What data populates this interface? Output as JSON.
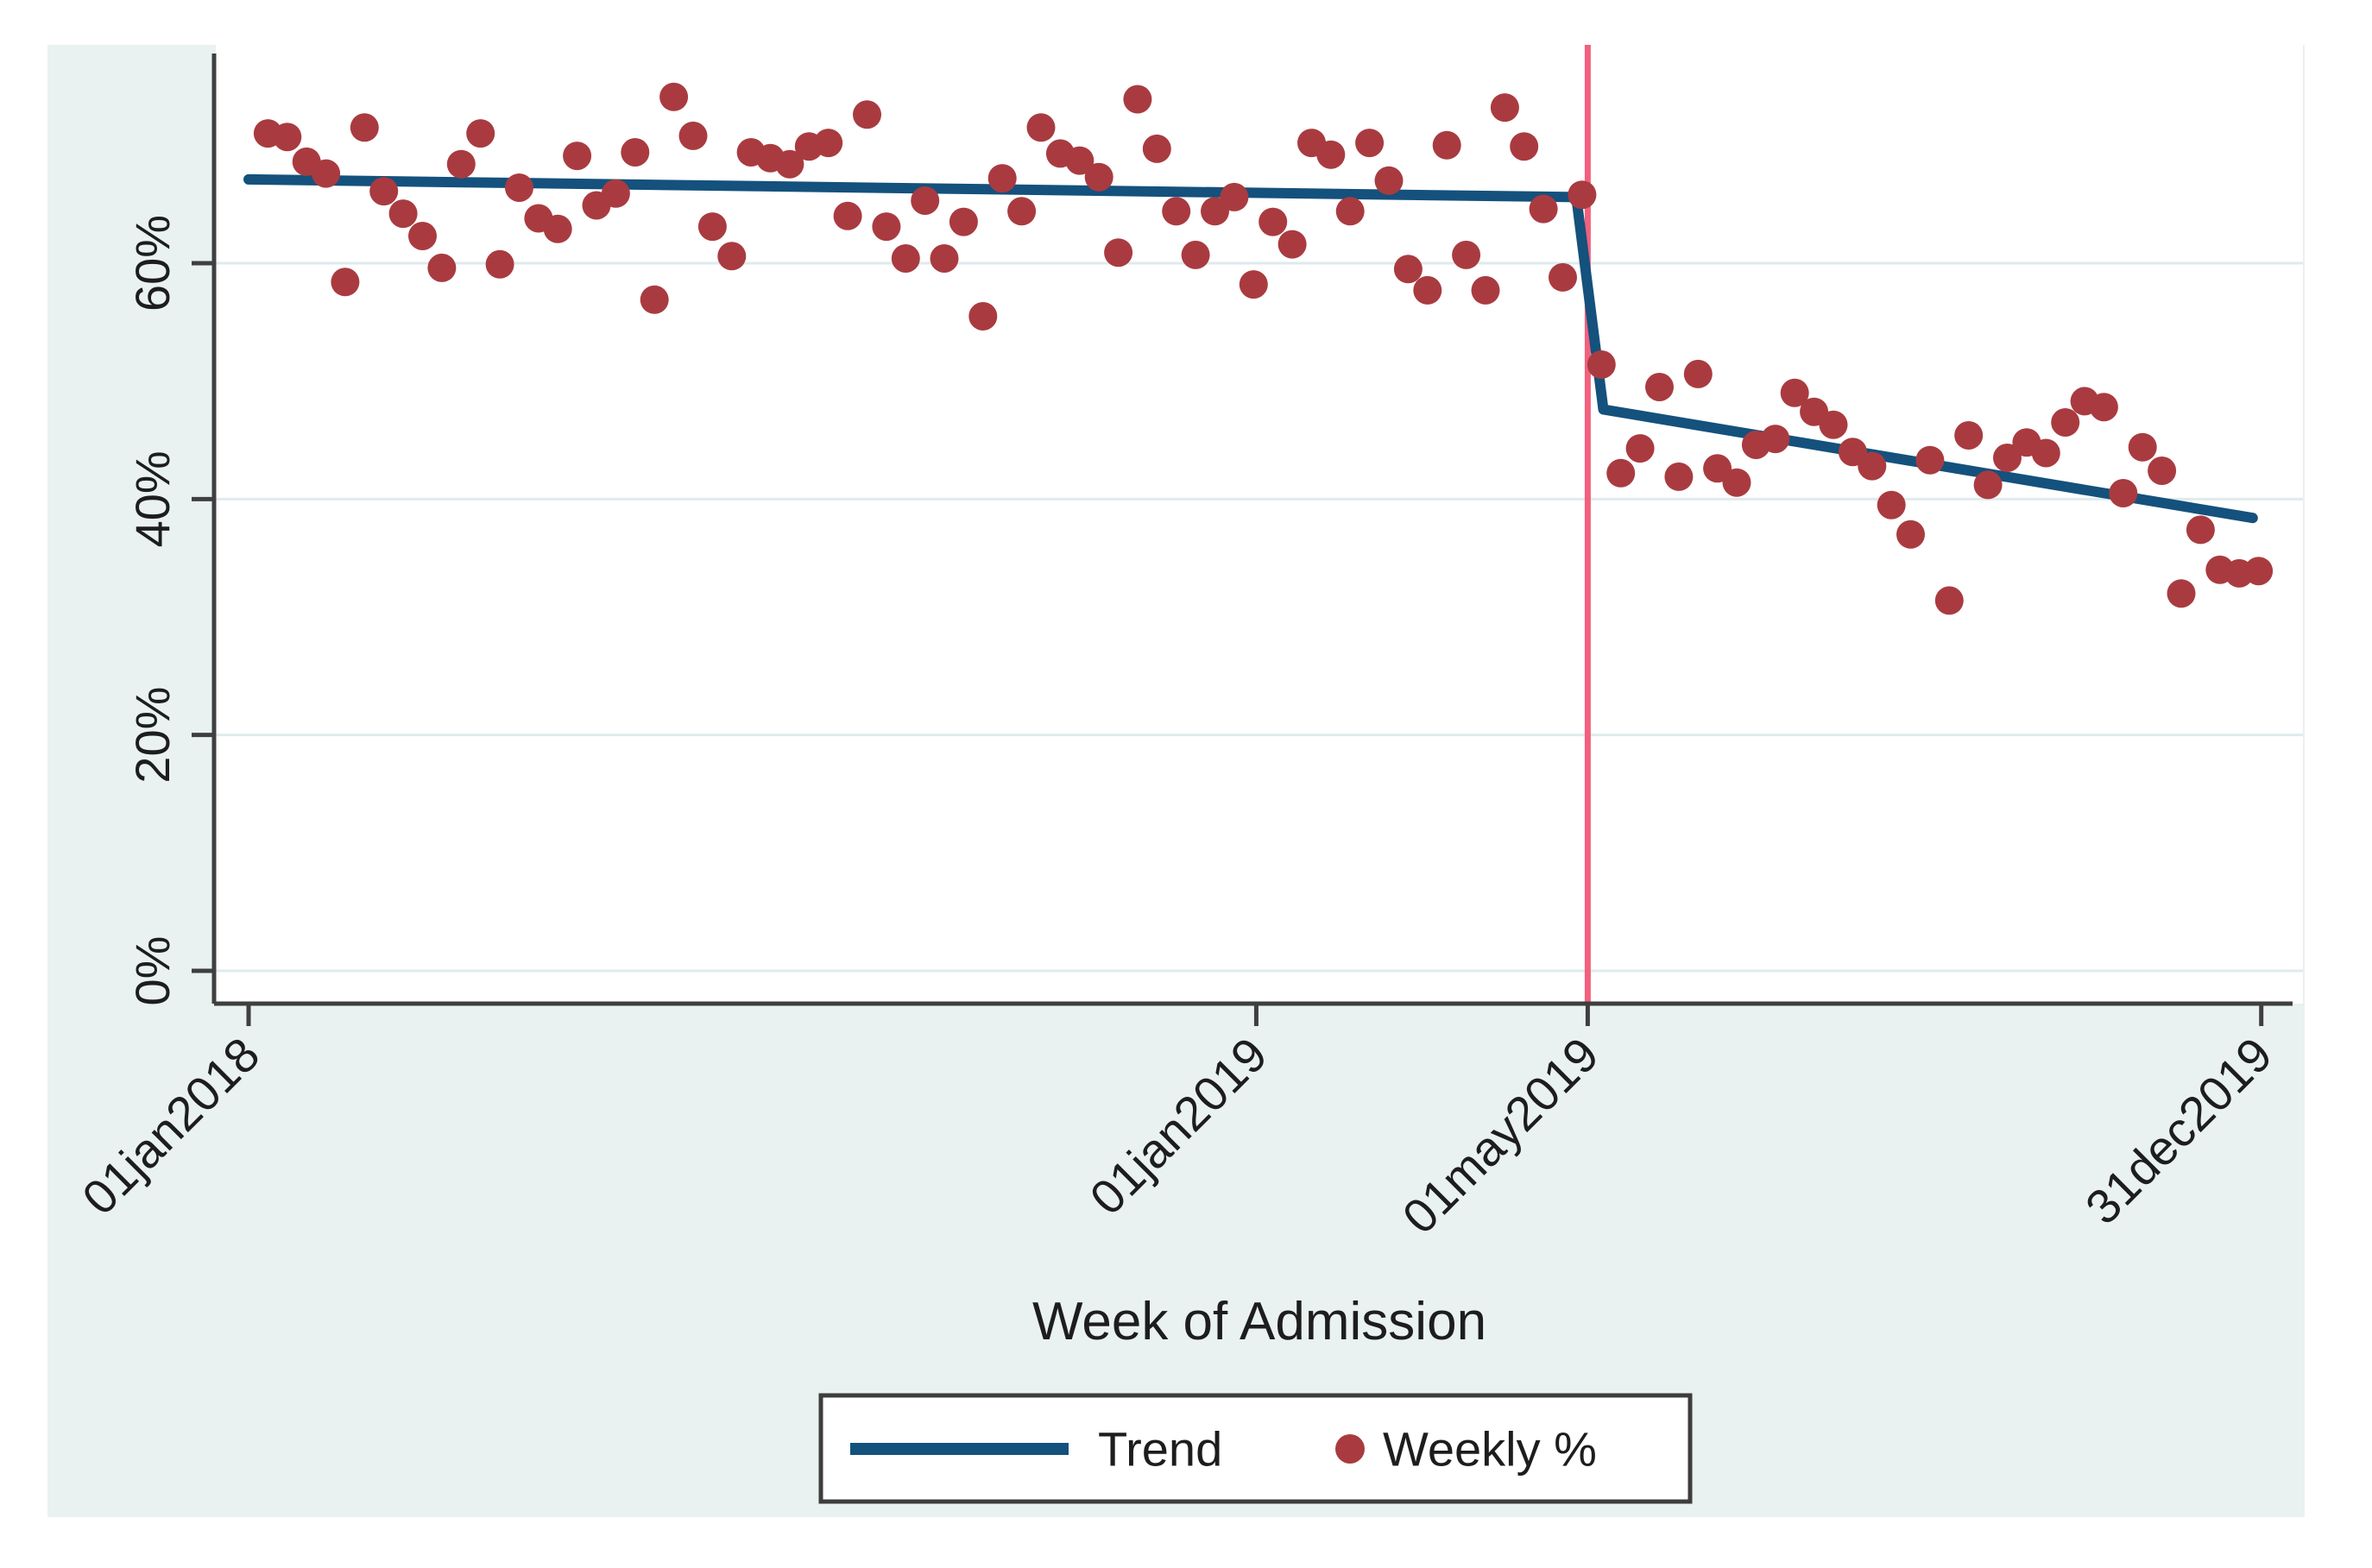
{
  "chart_data": {
    "type": "scatter",
    "title": "",
    "xlabel": "Week of Admission",
    "ylabel": "",
    "grid": "horizontal",
    "legend_position": "bottom-center",
    "x_unit": "weeks since 01jan2018",
    "xlim_weeks": [
      -1.7,
      106.3
    ],
    "ylim_percent": [
      0,
      78.5
    ],
    "x_ticks": [
      {
        "label": "01jan2018",
        "week": 0
      },
      {
        "label": "01jan2019",
        "week": 52.14
      },
      {
        "label": "01may2019",
        "week": 69.29
      },
      {
        "label": "31dec2019",
        "week": 104.14
      }
    ],
    "y_ticks": [
      {
        "label": "0%",
        "value": 0
      },
      {
        "label": "20%",
        "value": 20
      },
      {
        "label": "40%",
        "value": 40
      },
      {
        "label": "60%",
        "value": 60
      }
    ],
    "vline_week": 69.29,
    "series": [
      {
        "name": "Trend",
        "type": "line",
        "color": "#14517c"
      },
      {
        "name": "Weekly %",
        "type": "scatter",
        "color": "#a93b40"
      }
    ],
    "trend_polyline": [
      [
        0,
        67.1
      ],
      [
        68.7,
        65.6
      ],
      [
        70.1,
        47.6
      ],
      [
        103.7,
        38.4
      ]
    ],
    "points": [
      [
        1,
        71.0
      ],
      [
        2,
        70.7
      ],
      [
        3,
        68.6
      ],
      [
        4,
        67.6
      ],
      [
        5,
        58.4
      ],
      [
        6,
        71.5
      ],
      [
        7,
        66.1
      ],
      [
        8,
        64.2
      ],
      [
        9,
        62.3
      ],
      [
        10,
        59.6
      ],
      [
        11,
        68.4
      ],
      [
        12,
        71.0
      ],
      [
        13,
        59.9
      ],
      [
        14,
        66.4
      ],
      [
        15,
        63.8
      ],
      [
        16,
        62.9
      ],
      [
        17,
        69.1
      ],
      [
        18,
        64.9
      ],
      [
        19,
        65.9
      ],
      [
        20,
        69.4
      ],
      [
        21,
        56.9
      ],
      [
        22,
        74.1
      ],
      [
        23,
        70.8
      ],
      [
        24,
        63.1
      ],
      [
        25,
        60.6
      ],
      [
        26,
        69.4
      ],
      [
        27,
        68.9
      ],
      [
        28,
        68.4
      ],
      [
        29,
        69.9
      ],
      [
        30,
        70.2
      ],
      [
        31,
        64.0
      ],
      [
        32,
        72.6
      ],
      [
        33,
        63.1
      ],
      [
        34,
        60.4
      ],
      [
        35,
        65.3
      ],
      [
        36,
        60.4
      ],
      [
        37,
        63.5
      ],
      [
        38,
        55.5
      ],
      [
        39,
        67.2
      ],
      [
        40,
        64.4
      ],
      [
        41,
        71.5
      ],
      [
        42,
        69.3
      ],
      [
        43,
        68.7
      ],
      [
        44,
        67.3
      ],
      [
        45,
        60.9
      ],
      [
        46,
        73.9
      ],
      [
        47,
        69.7
      ],
      [
        48,
        64.4
      ],
      [
        49,
        60.7
      ],
      [
        50,
        64.4
      ],
      [
        51,
        65.6
      ],
      [
        52,
        58.2
      ],
      [
        53,
        63.5
      ],
      [
        54,
        61.6
      ],
      [
        55,
        70.2
      ],
      [
        56,
        69.2
      ],
      [
        57,
        64.4
      ],
      [
        58,
        70.2
      ],
      [
        59,
        67.0
      ],
      [
        60,
        59.5
      ],
      [
        61,
        57.7
      ],
      [
        62,
        70.0
      ],
      [
        63,
        60.7
      ],
      [
        64,
        57.7
      ],
      [
        65,
        73.2
      ],
      [
        66,
        69.9
      ],
      [
        67,
        64.6
      ],
      [
        68,
        58.8
      ],
      [
        69,
        65.8
      ],
      [
        70,
        51.4
      ],
      [
        71,
        42.2
      ],
      [
        72,
        44.3
      ],
      [
        73,
        49.5
      ],
      [
        74,
        41.9
      ],
      [
        75,
        50.6
      ],
      [
        76,
        42.6
      ],
      [
        77,
        41.4
      ],
      [
        78,
        44.6
      ],
      [
        79,
        45.1
      ],
      [
        80,
        49.0
      ],
      [
        81,
        47.4
      ],
      [
        82,
        46.3
      ],
      [
        83,
        44.0
      ],
      [
        84,
        42.8
      ],
      [
        85,
        39.5
      ],
      [
        86,
        37.0
      ],
      [
        87,
        43.3
      ],
      [
        88,
        31.4
      ],
      [
        89,
        45.4
      ],
      [
        90,
        41.2
      ],
      [
        91,
        43.5
      ],
      [
        92,
        44.8
      ],
      [
        93,
        43.9
      ],
      [
        94,
        46.5
      ],
      [
        95,
        48.3
      ],
      [
        96,
        47.8
      ],
      [
        97,
        40.5
      ],
      [
        98,
        44.4
      ],
      [
        99,
        42.4
      ],
      [
        100,
        32.0
      ],
      [
        101,
        37.4
      ],
      [
        102,
        34.0
      ],
      [
        103,
        33.7
      ],
      [
        104,
        33.9
      ]
    ],
    "colors": {
      "trend": "#14517c",
      "dots": "#a93b40",
      "vline": "#f2607e",
      "figure_bg": "#e9f1f1",
      "plot_bg": "#ffffff",
      "grid": "#dfebec",
      "axis": "#3f3f3f",
      "text": "#1d1d1d",
      "legend_border": "#3d3d3d",
      "legend_bg": "#ffffff"
    }
  }
}
